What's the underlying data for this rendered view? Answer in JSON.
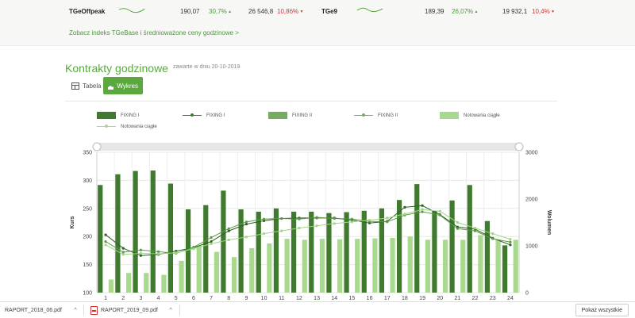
{
  "tickers": [
    {
      "name": "TGeOffpeak",
      "price": "190,07",
      "change": "30,7%",
      "volume": "26 546,8",
      "volume_change": "10,86%"
    },
    {
      "name": "TGe9",
      "price": "189,39",
      "change": "26,07%",
      "volume": "19 932,1",
      "volume_change": "10,4%"
    }
  ],
  "index_link": "Zobacz indeks TGeBase i średnioważone ceny godzinowe >",
  "section": {
    "title": "Kontrakty godzinowe",
    "subtitle": "zawarte w dniu 20-10-2019"
  },
  "view_buttons": {
    "table": "Tabela",
    "chart": "Wykres"
  },
  "legend": [
    "FIXING I",
    "FIXING I",
    "FIXING II",
    "FIXING II",
    "Notowania ciągłe",
    "Notowania ciągłe"
  ],
  "colors": {
    "fixing1": "#3f7a2f",
    "fixing2": "#76ad5c",
    "ciagle": "#a9d98e",
    "accent": "#5aa83e"
  },
  "chart_data": {
    "type": "bar",
    "x": [
      1,
      2,
      3,
      4,
      5,
      6,
      7,
      8,
      9,
      10,
      11,
      12,
      13,
      14,
      15,
      16,
      17,
      18,
      19,
      20,
      21,
      22,
      23,
      24
    ],
    "ylabel": "Kurs",
    "y2label": "Wolumen",
    "ylim": [
      100,
      350
    ],
    "y2lim": [
      0,
      3000
    ],
    "yticks": [
      100,
      150,
      200,
      250,
      300,
      350
    ],
    "y2ticks": [
      0,
      1000,
      2000,
      3000
    ],
    "bar_series": [
      {
        "name": "FIXING I",
        "values": [
          2300,
          2530,
          2600,
          2610,
          2330,
          1780,
          1870,
          2180,
          1780,
          1730,
          1800,
          1730,
          1730,
          1700,
          1720,
          1750,
          1800,
          1980,
          2320,
          1750,
          1970,
          2300,
          1530,
          1010
        ]
      },
      {
        "name": "FIXING II",
        "values": [
          0,
          0,
          0,
          0,
          0,
          0,
          0,
          0,
          0,
          0,
          0,
          0,
          0,
          0,
          0,
          0,
          0,
          0,
          0,
          0,
          0,
          0,
          0,
          0
        ]
      },
      {
        "name": "Notowania ciągłe",
        "values": [
          280,
          420,
          420,
          380,
          680,
          1000,
          870,
          760,
          950,
          1050,
          1150,
          1130,
          1150,
          1140,
          1150,
          1160,
          1170,
          1200,
          1130,
          1130,
          1130,
          1230,
          1130,
          1130
        ]
      }
    ],
    "line_series": [
      {
        "name": "FIXING I",
        "values": [
          203,
          179,
          166,
          168,
          174,
          180,
          191,
          210,
          222,
          228,
          232,
          233,
          233,
          233,
          229,
          224,
          227,
          252,
          255,
          239,
          217,
          213,
          197,
          185
        ]
      },
      {
        "name": "FIXING II",
        "values": [
          191,
          172,
          176,
          173,
          170,
          181,
          198,
          214,
          226,
          231,
          232,
          231,
          234,
          232,
          231,
          227,
          226,
          238,
          244,
          238,
          214,
          210,
          196,
          190
        ]
      },
      {
        "name": "Notowania ciągłe",
        "values": [
          185,
          168,
          170,
          169,
          171,
          178,
          187,
          194,
          199,
          205,
          210,
          215,
          219,
          223,
          226,
          229,
          233,
          240,
          248,
          245,
          225,
          215,
          205,
          195
        ]
      }
    ]
  },
  "downloads": [
    {
      "name": "RAPORT_2018_06.pdf"
    },
    {
      "name": "RAPORT_2019_09.pdf"
    }
  ],
  "show_all": "Pokaż wszystkie"
}
